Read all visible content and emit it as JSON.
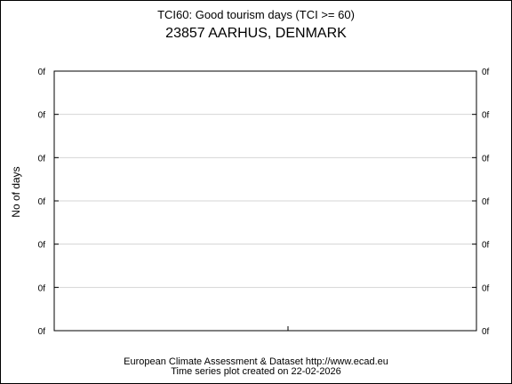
{
  "chart_data": {
    "type": "line",
    "title": "TCI60: Good tourism days (TCI >= 60)",
    "subtitle": "23857 AARHUS, DENMARK",
    "ylabel": "No of days",
    "xlabel": "",
    "y_tick_labels": [
      "0f",
      "0f",
      "0f",
      "0f",
      "0f",
      "0f",
      "0f"
    ],
    "series": [],
    "grid": true,
    "footer_line1": "European Climate Assessment & Dataset  http://www.ecad.eu",
    "footer_line2": "Time series plot created on 22-02-2026"
  }
}
